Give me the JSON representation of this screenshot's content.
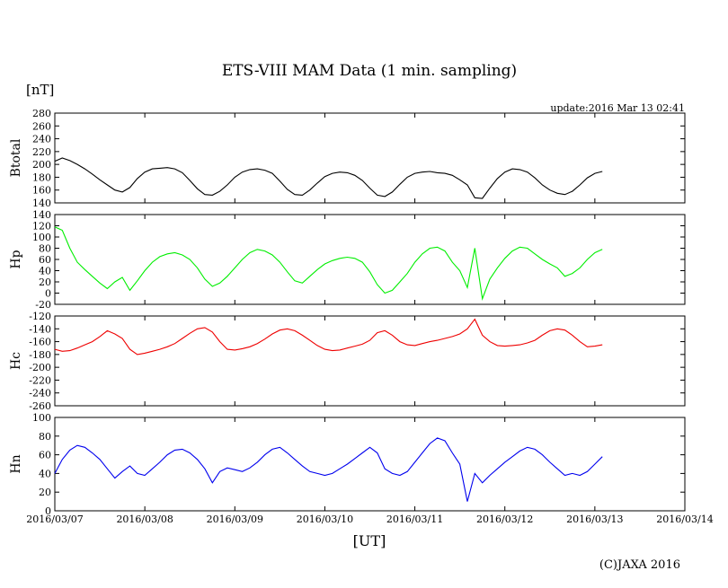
{
  "title": "ETS-VIII MAM Data (1 min. sampling)",
  "unit_label": "[nT]",
  "update_label": "update:2016 Mar 13 02:41",
  "xlabel": "[UT]",
  "copyright": "(C)JAXA 2016",
  "chart_data": [
    {
      "type": "line",
      "name": "Btotal",
      "ylabel": "Btotal",
      "color": "#000000",
      "ylim": [
        140,
        280
      ],
      "yticks": [
        280,
        260,
        240,
        220,
        200,
        180,
        160,
        140
      ],
      "xlim": [
        "2016/03/07",
        "2016/03/14"
      ],
      "x": [
        "2016/03/07 00:00",
        "2016/03/07 02:00",
        "2016/03/07 04:00",
        "2016/03/07 06:00",
        "2016/03/07 08:00",
        "2016/03/07 10:00",
        "2016/03/07 12:00",
        "2016/03/07 14:00",
        "2016/03/07 16:00",
        "2016/03/07 18:00",
        "2016/03/07 20:00",
        "2016/03/07 22:00",
        "2016/03/08 00:00",
        "2016/03/08 02:00",
        "2016/03/08 04:00",
        "2016/03/08 06:00",
        "2016/03/08 08:00",
        "2016/03/08 10:00",
        "2016/03/08 12:00",
        "2016/03/08 14:00",
        "2016/03/08 16:00",
        "2016/03/08 18:00",
        "2016/03/08 20:00",
        "2016/03/08 22:00",
        "2016/03/09 00:00",
        "2016/03/09 02:00",
        "2016/03/09 04:00",
        "2016/03/09 06:00",
        "2016/03/09 08:00",
        "2016/03/09 10:00",
        "2016/03/09 12:00",
        "2016/03/09 14:00",
        "2016/03/09 16:00",
        "2016/03/09 18:00",
        "2016/03/09 20:00",
        "2016/03/09 22:00",
        "2016/03/10 00:00",
        "2016/03/10 02:00",
        "2016/03/10 04:00",
        "2016/03/10 06:00",
        "2016/03/10 08:00",
        "2016/03/10 10:00",
        "2016/03/10 12:00",
        "2016/03/10 14:00",
        "2016/03/10 16:00",
        "2016/03/10 18:00",
        "2016/03/10 20:00",
        "2016/03/10 22:00",
        "2016/03/11 00:00",
        "2016/03/11 02:00",
        "2016/03/11 04:00",
        "2016/03/11 06:00",
        "2016/03/11 08:00",
        "2016/03/11 10:00",
        "2016/03/11 12:00",
        "2016/03/11 14:00",
        "2016/03/11 16:00",
        "2016/03/11 18:00",
        "2016/03/11 20:00",
        "2016/03/11 22:00",
        "2016/03/12 00:00",
        "2016/03/12 02:00",
        "2016/03/12 04:00",
        "2016/03/12 06:00",
        "2016/03/12 08:00",
        "2016/03/12 10:00",
        "2016/03/12 12:00",
        "2016/03/12 14:00",
        "2016/03/12 16:00",
        "2016/03/12 18:00",
        "2016/03/12 20:00",
        "2016/03/12 22:00",
        "2016/03/13 00:00",
        "2016/03/13 02:00"
      ],
      "values": [
        205,
        210,
        206,
        200,
        193,
        185,
        176,
        168,
        160,
        157,
        164,
        178,
        188,
        193,
        194,
        195,
        193,
        187,
        175,
        162,
        153,
        152,
        158,
        168,
        180,
        188,
        192,
        193,
        191,
        186,
        174,
        161,
        153,
        152,
        160,
        171,
        181,
        186,
        188,
        187,
        183,
        175,
        163,
        152,
        150,
        157,
        169,
        180,
        186,
        188,
        189,
        187,
        186,
        183,
        176,
        168,
        148,
        147,
        163,
        178,
        188,
        193,
        192,
        188,
        179,
        168,
        160,
        155,
        153,
        158,
        168,
        179,
        186,
        189
      ]
    },
    {
      "type": "line",
      "name": "Hp",
      "ylabel": "Hp",
      "color": "#00ee00",
      "ylim": [
        -20,
        140
      ],
      "yticks": [
        140,
        120,
        100,
        80,
        60,
        40,
        20,
        0,
        -20
      ],
      "xlim": [
        "2016/03/07",
        "2016/03/14"
      ],
      "x": [
        "2016/03/07 00:00",
        "2016/03/07 02:00",
        "2016/03/07 04:00",
        "2016/03/07 06:00",
        "2016/03/07 08:00",
        "2016/03/07 10:00",
        "2016/03/07 12:00",
        "2016/03/07 14:00",
        "2016/03/07 16:00",
        "2016/03/07 18:00",
        "2016/03/07 20:00",
        "2016/03/07 22:00",
        "2016/03/08 00:00",
        "2016/03/08 02:00",
        "2016/03/08 04:00",
        "2016/03/08 06:00",
        "2016/03/08 08:00",
        "2016/03/08 10:00",
        "2016/03/08 12:00",
        "2016/03/08 14:00",
        "2016/03/08 16:00",
        "2016/03/08 18:00",
        "2016/03/08 20:00",
        "2016/03/08 22:00",
        "2016/03/09 00:00",
        "2016/03/09 02:00",
        "2016/03/09 04:00",
        "2016/03/09 06:00",
        "2016/03/09 08:00",
        "2016/03/09 10:00",
        "2016/03/09 12:00",
        "2016/03/09 14:00",
        "2016/03/09 16:00",
        "2016/03/09 18:00",
        "2016/03/09 20:00",
        "2016/03/09 22:00",
        "2016/03/10 00:00",
        "2016/03/10 02:00",
        "2016/03/10 04:00",
        "2016/03/10 06:00",
        "2016/03/10 08:00",
        "2016/03/10 10:00",
        "2016/03/10 12:00",
        "2016/03/10 14:00",
        "2016/03/10 16:00",
        "2016/03/10 18:00",
        "2016/03/10 20:00",
        "2016/03/10 22:00",
        "2016/03/11 00:00",
        "2016/03/11 02:00",
        "2016/03/11 04:00",
        "2016/03/11 06:00",
        "2016/03/11 08:00",
        "2016/03/11 10:00",
        "2016/03/11 12:00",
        "2016/03/11 14:00",
        "2016/03/11 16:00",
        "2016/03/11 18:00",
        "2016/03/11 20:00",
        "2016/03/11 22:00",
        "2016/03/12 00:00",
        "2016/03/12 02:00",
        "2016/03/12 04:00",
        "2016/03/12 06:00",
        "2016/03/12 08:00",
        "2016/03/12 10:00",
        "2016/03/12 12:00",
        "2016/03/12 14:00",
        "2016/03/12 16:00",
        "2016/03/12 18:00",
        "2016/03/12 20:00",
        "2016/03/12 22:00",
        "2016/03/13 00:00",
        "2016/03/13 02:00"
      ],
      "values": [
        118,
        112,
        80,
        55,
        42,
        30,
        18,
        8,
        20,
        28,
        5,
        22,
        40,
        55,
        65,
        70,
        72,
        68,
        60,
        45,
        25,
        12,
        18,
        30,
        45,
        60,
        72,
        78,
        75,
        68,
        55,
        38,
        22,
        18,
        30,
        42,
        52,
        58,
        62,
        64,
        62,
        55,
        38,
        15,
        0,
        5,
        20,
        35,
        55,
        70,
        80,
        82,
        75,
        55,
        40,
        10,
        80,
        -10,
        25,
        45,
        62,
        75,
        82,
        80,
        70,
        60,
        52,
        45,
        30,
        35,
        45,
        60,
        72,
        78
      ]
    },
    {
      "type": "line",
      "name": "Hc",
      "ylabel": "Hc",
      "color": "#ee0000",
      "ylim": [
        -260,
        -120
      ],
      "yticks": [
        -120,
        -140,
        -160,
        -180,
        -200,
        -220,
        -240,
        -260
      ],
      "xlim": [
        "2016/03/07",
        "2016/03/14"
      ],
      "x": [
        "2016/03/07 00:00",
        "2016/03/07 02:00",
        "2016/03/07 04:00",
        "2016/03/07 06:00",
        "2016/03/07 08:00",
        "2016/03/07 10:00",
        "2016/03/07 12:00",
        "2016/03/07 14:00",
        "2016/03/07 16:00",
        "2016/03/07 18:00",
        "2016/03/07 20:00",
        "2016/03/07 22:00",
        "2016/03/08 00:00",
        "2016/03/08 02:00",
        "2016/03/08 04:00",
        "2016/03/08 06:00",
        "2016/03/08 08:00",
        "2016/03/08 10:00",
        "2016/03/08 12:00",
        "2016/03/08 14:00",
        "2016/03/08 16:00",
        "2016/03/08 18:00",
        "2016/03/08 20:00",
        "2016/03/08 22:00",
        "2016/03/09 00:00",
        "2016/03/09 02:00",
        "2016/03/09 04:00",
        "2016/03/09 06:00",
        "2016/03/09 08:00",
        "2016/03/09 10:00",
        "2016/03/09 12:00",
        "2016/03/09 14:00",
        "2016/03/09 16:00",
        "2016/03/09 18:00",
        "2016/03/09 20:00",
        "2016/03/09 22:00",
        "2016/03/10 00:00",
        "2016/03/10 02:00",
        "2016/03/10 04:00",
        "2016/03/10 06:00",
        "2016/03/10 08:00",
        "2016/03/10 10:00",
        "2016/03/10 12:00",
        "2016/03/10 14:00",
        "2016/03/10 16:00",
        "2016/03/10 18:00",
        "2016/03/10 20:00",
        "2016/03/10 22:00",
        "2016/03/11 00:00",
        "2016/03/11 02:00",
        "2016/03/11 04:00",
        "2016/03/11 06:00",
        "2016/03/11 08:00",
        "2016/03/11 10:00",
        "2016/03/11 12:00",
        "2016/03/11 14:00",
        "2016/03/11 16:00",
        "2016/03/11 18:00",
        "2016/03/11 20:00",
        "2016/03/11 22:00",
        "2016/03/12 00:00",
        "2016/03/12 02:00",
        "2016/03/12 04:00",
        "2016/03/12 06:00",
        "2016/03/12 08:00",
        "2016/03/12 10:00",
        "2016/03/12 12:00",
        "2016/03/12 14:00",
        "2016/03/12 16:00",
        "2016/03/12 18:00",
        "2016/03/12 20:00",
        "2016/03/12 22:00",
        "2016/03/13 00:00",
        "2016/03/13 02:00"
      ],
      "values": [
        -172,
        -175,
        -174,
        -170,
        -165,
        -160,
        -152,
        -143,
        -148,
        -155,
        -172,
        -180,
        -178,
        -175,
        -172,
        -168,
        -163,
        -155,
        -147,
        -140,
        -138,
        -145,
        -160,
        -172,
        -173,
        -171,
        -168,
        -163,
        -156,
        -148,
        -142,
        -140,
        -143,
        -150,
        -158,
        -166,
        -172,
        -174,
        -173,
        -170,
        -167,
        -164,
        -158,
        -146,
        -143,
        -150,
        -160,
        -165,
        -166,
        -163,
        -160,
        -158,
        -155,
        -152,
        -148,
        -140,
        -125,
        -150,
        -160,
        -166,
        -167,
        -166,
        -165,
        -162,
        -158,
        -150,
        -143,
        -140,
        -142,
        -150,
        -160,
        -168,
        -167,
        -165
      ]
    },
    {
      "type": "line",
      "name": "Hn",
      "ylabel": "Hn",
      "color": "#0000ee",
      "ylim": [
        0,
        100
      ],
      "yticks": [
        100,
        80,
        60,
        40,
        20,
        0
      ],
      "xlim": [
        "2016/03/07",
        "2016/03/14"
      ],
      "x": [
        "2016/03/07 00:00",
        "2016/03/07 02:00",
        "2016/03/07 04:00",
        "2016/03/07 06:00",
        "2016/03/07 08:00",
        "2016/03/07 10:00",
        "2016/03/07 12:00",
        "2016/03/07 14:00",
        "2016/03/07 16:00",
        "2016/03/07 18:00",
        "2016/03/07 20:00",
        "2016/03/07 22:00",
        "2016/03/08 00:00",
        "2016/03/08 02:00",
        "2016/03/08 04:00",
        "2016/03/08 06:00",
        "2016/03/08 08:00",
        "2016/03/08 10:00",
        "2016/03/08 12:00",
        "2016/03/08 14:00",
        "2016/03/08 16:00",
        "2016/03/08 18:00",
        "2016/03/08 20:00",
        "2016/03/08 22:00",
        "2016/03/09 00:00",
        "2016/03/09 02:00",
        "2016/03/09 04:00",
        "2016/03/09 06:00",
        "2016/03/09 08:00",
        "2016/03/09 10:00",
        "2016/03/09 12:00",
        "2016/03/09 14:00",
        "2016/03/09 16:00",
        "2016/03/09 18:00",
        "2016/03/09 20:00",
        "2016/03/09 22:00",
        "2016/03/10 00:00",
        "2016/03/10 02:00",
        "2016/03/10 04:00",
        "2016/03/10 06:00",
        "2016/03/10 08:00",
        "2016/03/10 10:00",
        "2016/03/10 12:00",
        "2016/03/10 14:00",
        "2016/03/10 16:00",
        "2016/03/10 18:00",
        "2016/03/10 20:00",
        "2016/03/10 22:00",
        "2016/03/11 00:00",
        "2016/03/11 02:00",
        "2016/03/11 04:00",
        "2016/03/11 06:00",
        "2016/03/11 08:00",
        "2016/03/11 10:00",
        "2016/03/11 12:00",
        "2016/03/11 14:00",
        "2016/03/11 16:00",
        "2016/03/11 18:00",
        "2016/03/11 20:00",
        "2016/03/11 22:00",
        "2016/03/12 00:00",
        "2016/03/12 02:00",
        "2016/03/12 04:00",
        "2016/03/12 06:00",
        "2016/03/12 08:00",
        "2016/03/12 10:00",
        "2016/03/12 12:00",
        "2016/03/12 14:00",
        "2016/03/12 16:00",
        "2016/03/12 18:00",
        "2016/03/12 20:00",
        "2016/03/12 22:00",
        "2016/03/13 00:00",
        "2016/03/13 02:00"
      ],
      "values": [
        40,
        55,
        65,
        70,
        68,
        62,
        55,
        45,
        35,
        42,
        48,
        40,
        38,
        45,
        52,
        60,
        65,
        66,
        62,
        55,
        45,
        30,
        42,
        46,
        44,
        42,
        46,
        52,
        60,
        66,
        68,
        62,
        55,
        48,
        42,
        40,
        38,
        40,
        45,
        50,
        56,
        62,
        68,
        62,
        45,
        40,
        38,
        42,
        52,
        62,
        72,
        78,
        75,
        62,
        50,
        10,
        40,
        30,
        38,
        45,
        52,
        58,
        64,
        68,
        66,
        60,
        52,
        45,
        38,
        40,
        38,
        42,
        50,
        58
      ]
    }
  ],
  "x_ticks": [
    "2016/03/07",
    "2016/03/08",
    "2016/03/09",
    "2016/03/10",
    "2016/03/11",
    "2016/03/12",
    "2016/03/13",
    "2016/03/14"
  ]
}
